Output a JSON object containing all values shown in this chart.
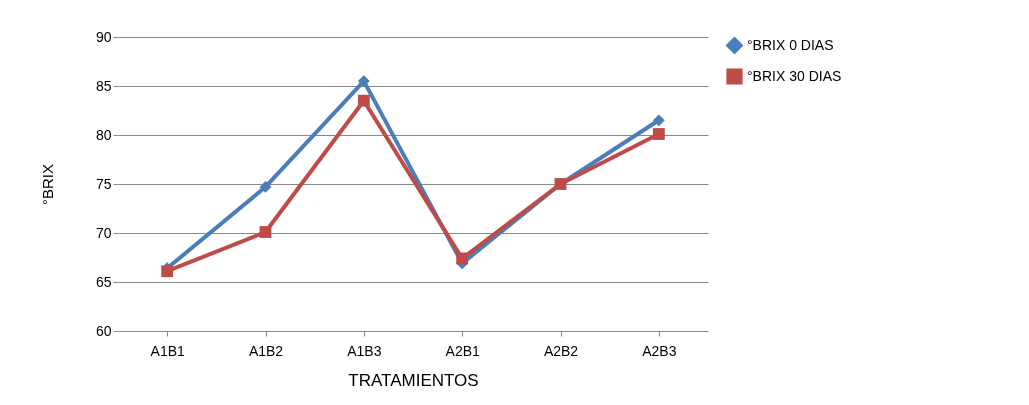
{
  "chart_data": {
    "type": "line",
    "xlabel": "TRATAMIENTOS",
    "ylabel": "°BRIX",
    "categories": [
      "A1B1",
      "A1B2",
      "A1B3",
      "A2B1",
      "A2B2",
      "A2B3"
    ],
    "series": [
      {
        "name": "°BRIX 0 DIAS",
        "color": "#4a7ebb",
        "marker": "diamond",
        "values": [
          66.4,
          74.7,
          85.5,
          66.9,
          75.0,
          81.5
        ]
      },
      {
        "name": "°BRIX 30 DIAS",
        "color": "#be4b48",
        "marker": "square",
        "values": [
          66.1,
          70.1,
          83.5,
          67.4,
          75.0,
          80.1
        ]
      }
    ],
    "ylim": [
      60,
      90
    ],
    "yticks": [
      60,
      65,
      70,
      75,
      80,
      85,
      90
    ],
    "grid": "y",
    "legend": "right",
    "line_style": "solid"
  }
}
